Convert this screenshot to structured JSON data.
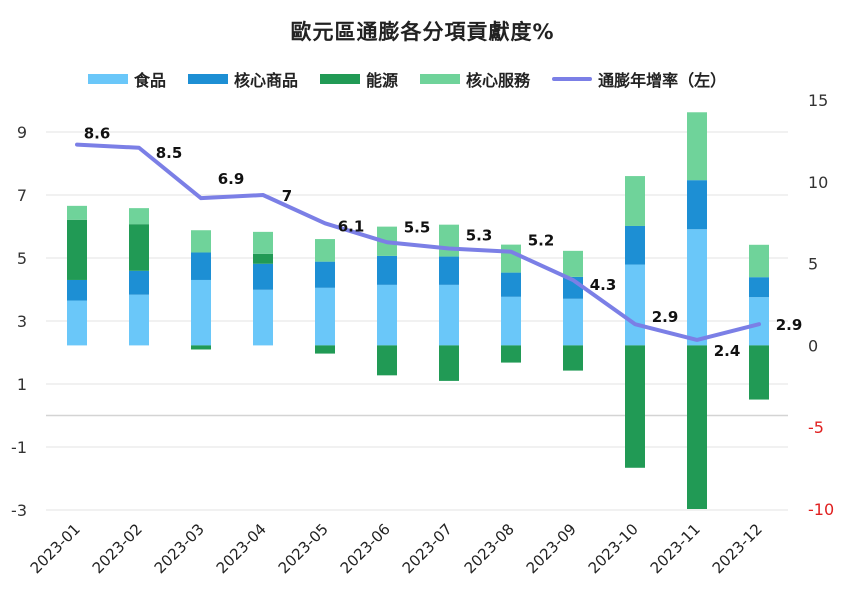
{
  "chart_data": {
    "type": "bar",
    "stacked": true,
    "title": "歐元區通膨各分項貢獻度%",
    "categories": [
      "2023-01",
      "2023-02",
      "2023-03",
      "2023-04",
      "2023-05",
      "2023-06",
      "2023-07",
      "2023-08",
      "2023-09",
      "2023-10",
      "2023-11",
      "2023-12"
    ],
    "series": [
      {
        "name": "食品",
        "kind": "bar",
        "axis": "right",
        "color": "#6ac7f9",
        "values": [
          2.74,
          3.1,
          4.0,
          3.4,
          3.52,
          3.7,
          3.7,
          2.97,
          2.85,
          4.94,
          7.1,
          2.95
        ]
      },
      {
        "name": "核心商品",
        "kind": "bar",
        "axis": "right",
        "color": "#1d8fd4",
        "values": [
          1.26,
          1.46,
          1.68,
          1.59,
          1.6,
          1.77,
          1.73,
          1.48,
          1.34,
          2.36,
          3.0,
          1.22
        ]
      },
      {
        "name": "能源",
        "kind": "bar",
        "axis": "right",
        "color": "#219a55",
        "values": [
          3.68,
          2.85,
          -0.25,
          0.61,
          -0.5,
          -1.83,
          -2.17,
          -1.05,
          -1.54,
          -7.48,
          -10.0,
          -3.31
        ]
      },
      {
        "name": "核心服務",
        "kind": "bar",
        "axis": "right",
        "color": "#6fd39a",
        "values": [
          0.85,
          0.98,
          1.36,
          1.34,
          1.38,
          1.79,
          1.95,
          1.71,
          1.59,
          3.05,
          4.15,
          1.98
        ]
      },
      {
        "name": "通膨年增率（左）",
        "kind": "line",
        "axis": "left",
        "color": "#7b7fe6",
        "values": [
          8.6,
          8.5,
          6.9,
          7,
          6.1,
          5.5,
          5.3,
          5.2,
          4.3,
          2.9,
          2.4,
          2.9
        ],
        "data_labels": [
          "8.6",
          "8.5",
          "6.9",
          "7",
          "6.1",
          "5.5",
          "5.3",
          "5.2",
          "4.3",
          "2.9",
          "2.4",
          "2.9"
        ]
      }
    ],
    "left_axis": {
      "range": [
        -3,
        9
      ],
      "ticks": [
        9,
        7,
        5,
        3,
        1,
        -1,
        -3
      ],
      "tick_labels": [
        "9",
        "7",
        "5",
        "3",
        "1",
        "-1",
        "-3"
      ]
    },
    "right_axis": {
      "range": [
        -10,
        15
      ],
      "ticks": [
        15,
        10,
        5,
        0,
        -5,
        -10
      ],
      "tick_labels": [
        "15",
        "10",
        "5",
        "0",
        "-5",
        "-10"
      ],
      "negative_color": "#e02020"
    },
    "xlabel": "",
    "ylabel": "",
    "grid": true,
    "legend_position": "top"
  },
  "legend": [
    {
      "label": "食品",
      "type": "bar",
      "color": "#6ac7f9"
    },
    {
      "label": "核心商品",
      "type": "bar",
      "color": "#1d8fd4"
    },
    {
      "label": "能源",
      "type": "bar",
      "color": "#219a55"
    },
    {
      "label": "核心服務",
      "type": "bar",
      "color": "#6fd39a"
    },
    {
      "label": "通膨年增率（左）",
      "type": "line",
      "color": "#7b7fe6"
    }
  ]
}
